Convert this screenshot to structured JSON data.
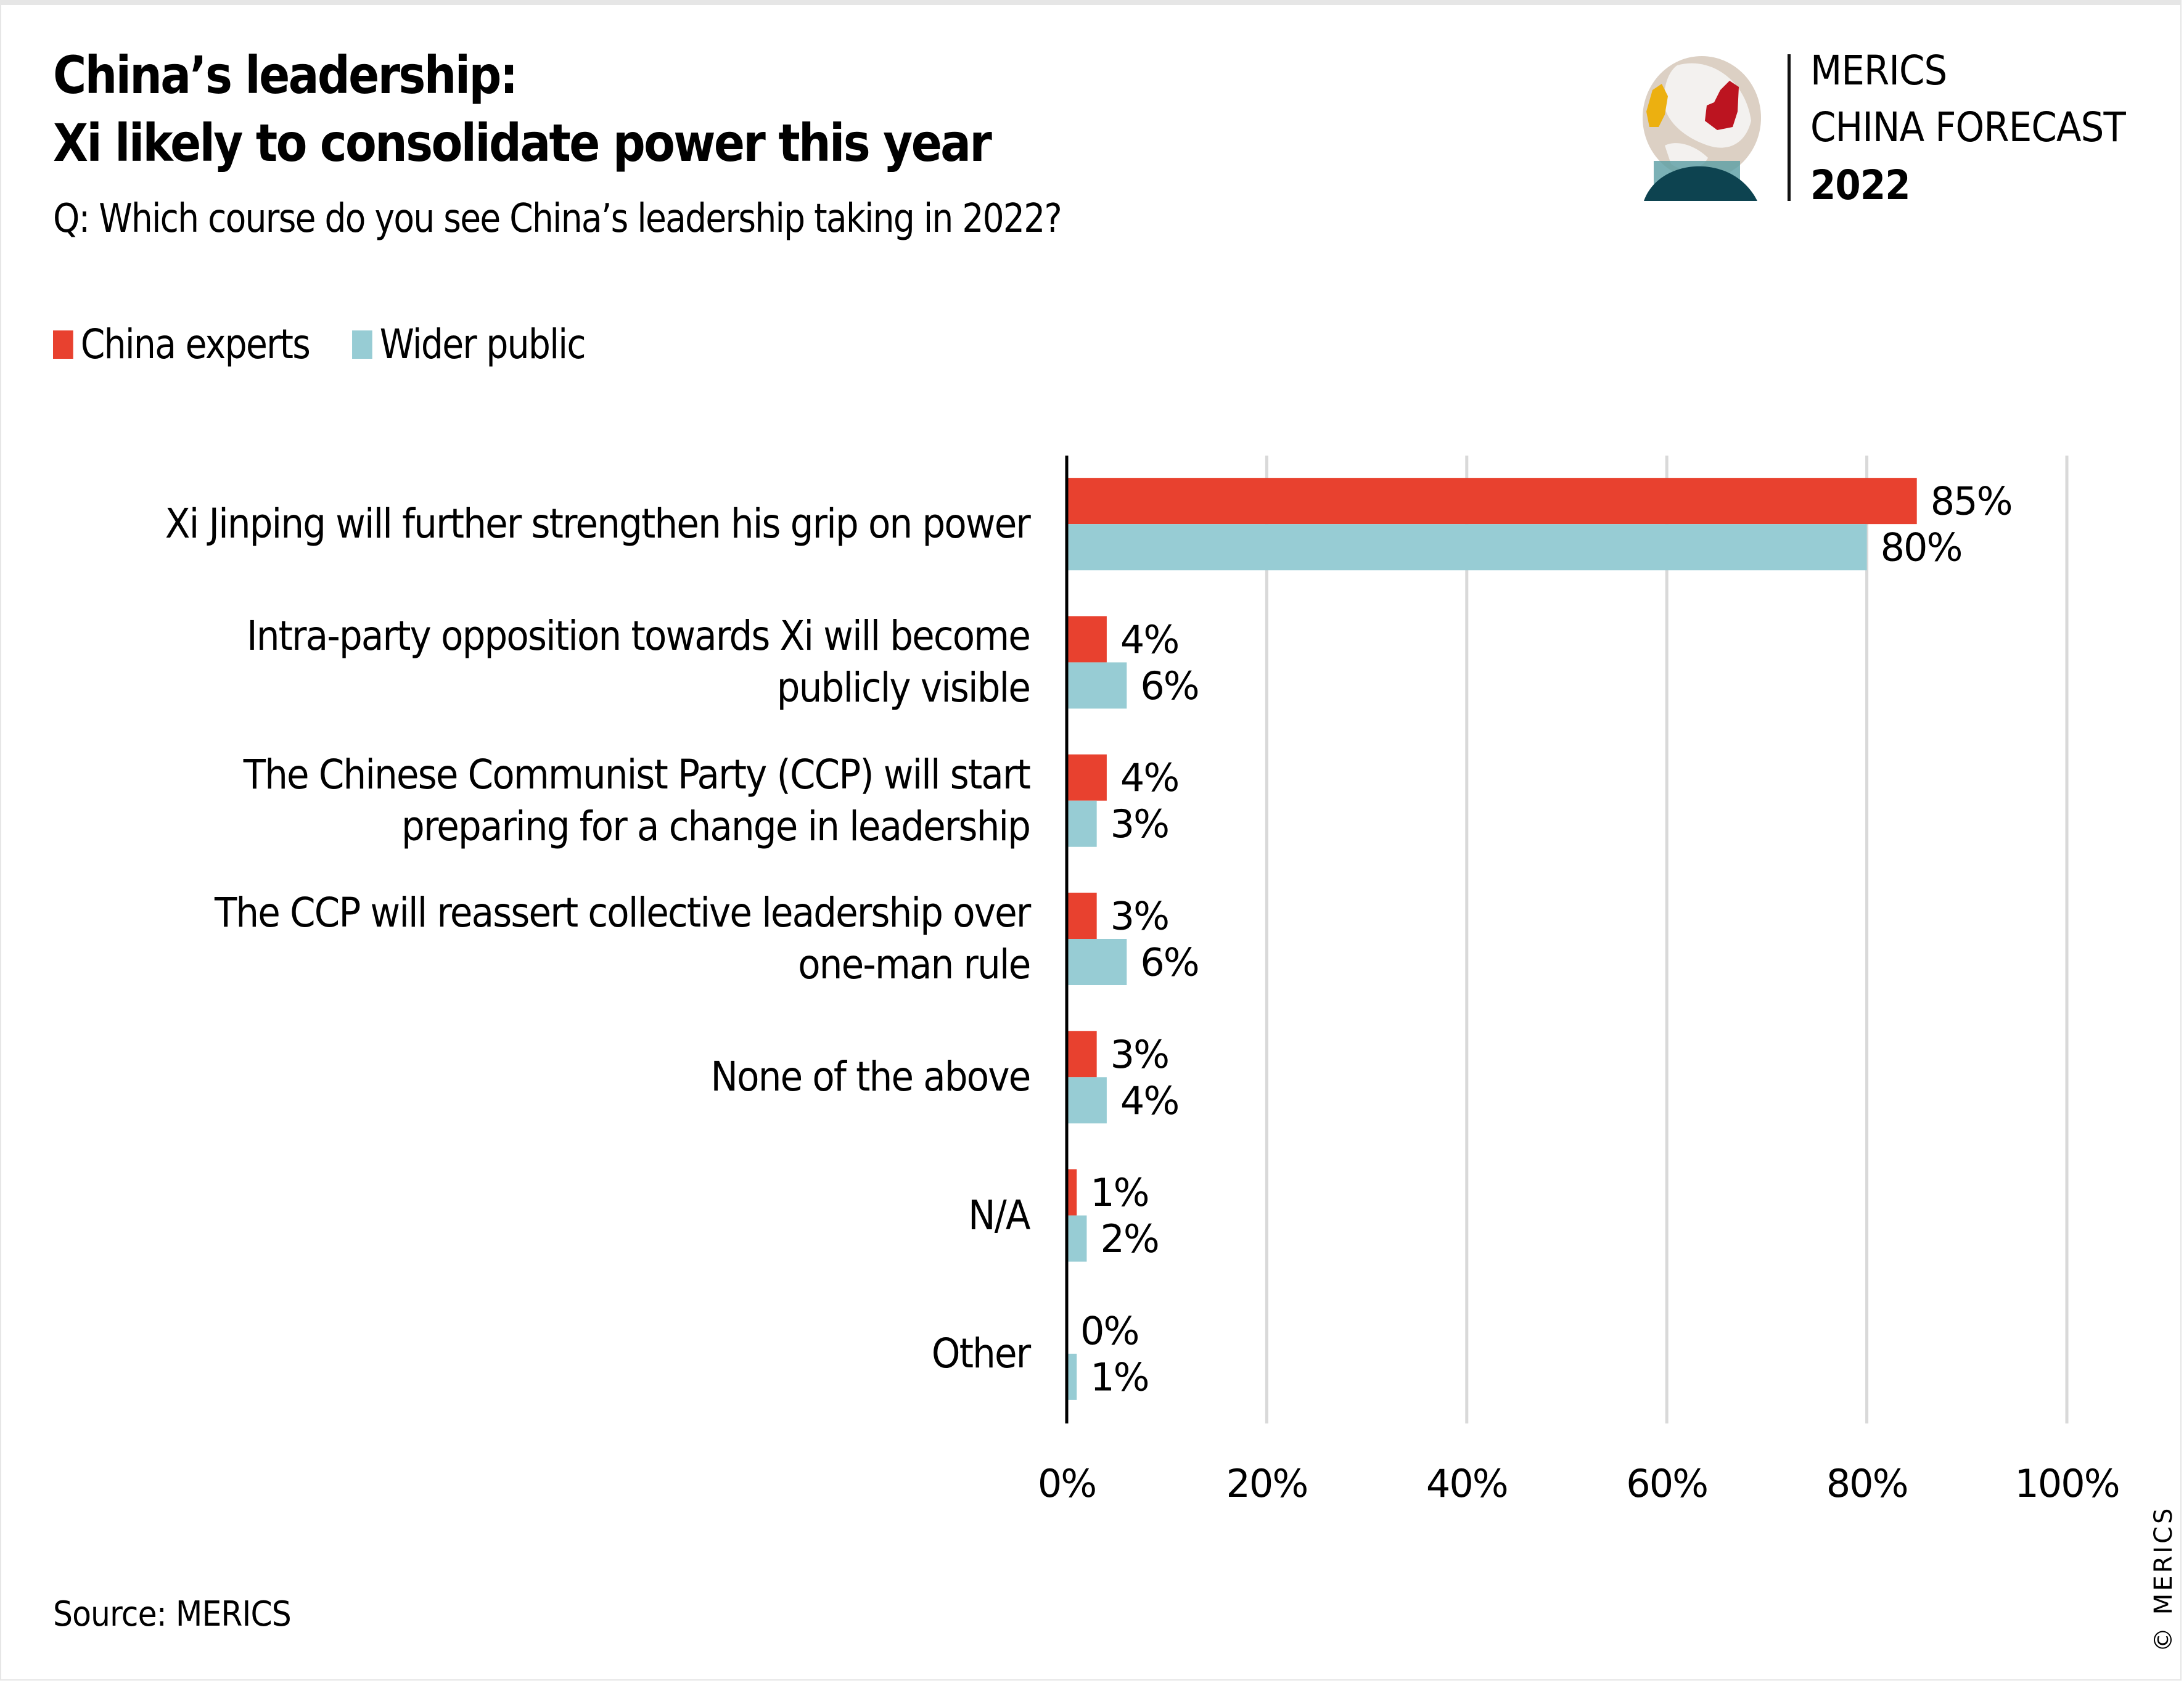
{
  "header": {
    "title_line1": "China’s leadership:",
    "title_line2": "Xi likely to consolidate power this year",
    "subtitle": "Q: Which course do you see China’s leadership taking in 2022?"
  },
  "logo": {
    "line1": "MERICS",
    "line2": "CHINA FORECAST",
    "line3": "2022",
    "icon": "globe-icon"
  },
  "legend": [
    {
      "label": "China experts",
      "color": "#e8412f"
    },
    {
      "label": "Wider public",
      "color": "#97ccd4"
    }
  ],
  "footer": {
    "source": "Source: MERICS",
    "copyright": "© MERICS"
  },
  "chart_data": {
    "type": "bar",
    "orientation": "horizontal",
    "title": "China’s leadership: Xi likely to consolidate power this year",
    "subtitle": "Q: Which course do you see China’s leadership taking in 2022?",
    "categories": [
      [
        "Xi Jinping will further strengthen his grip on power"
      ],
      [
        "Intra-party opposition towards Xi will become",
        "publicly visible"
      ],
      [
        "The Chinese Communist Party (CCP) will start",
        "preparing for a change in leadership"
      ],
      [
        "The CCP will reassert collective leadership over",
        "one-man rule"
      ],
      [
        "None of the above"
      ],
      [
        "N/A"
      ],
      [
        "Other"
      ]
    ],
    "series": [
      {
        "name": "China experts",
        "color": "#e8412f",
        "values": [
          85,
          4,
          4,
          3,
          3,
          1,
          0
        ]
      },
      {
        "name": "Wider public",
        "color": "#97ccd4",
        "values": [
          80,
          6,
          3,
          6,
          4,
          2,
          1
        ]
      }
    ],
    "value_suffix": "%",
    "xlim": [
      0,
      100
    ],
    "xticks": [
      0,
      20,
      40,
      60,
      80,
      100
    ],
    "xtick_labels": [
      "0%",
      "20%",
      "40%",
      "60%",
      "80%",
      "100%"
    ],
    "grid": "vertical",
    "legend_position": "top-left",
    "xlabel": "",
    "ylabel": ""
  }
}
